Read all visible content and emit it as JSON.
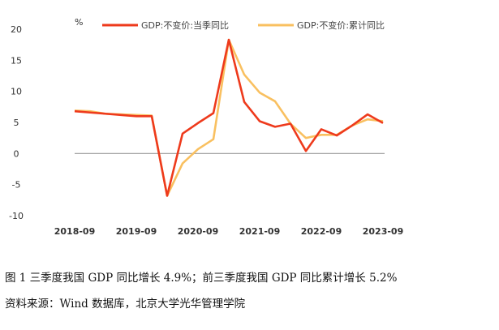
{
  "chart_data": {
    "type": "line",
    "unit_label": "%",
    "x": [
      "2018-09",
      "2018-12",
      "2019-03",
      "2019-06",
      "2019-09",
      "2019-12",
      "2020-03",
      "2020-06",
      "2020-09",
      "2020-12",
      "2021-03",
      "2021-06",
      "2021-09",
      "2021-12",
      "2022-03",
      "2022-06",
      "2022-09",
      "2022-12",
      "2023-03",
      "2023-06",
      "2023-09"
    ],
    "xticks": [
      "2018-09",
      "2019-09",
      "2020-09",
      "2021-09",
      "2022-09",
      "2023-09"
    ],
    "ylim": [
      -10,
      20
    ],
    "yticks": [
      20,
      15,
      10,
      5,
      0,
      -5,
      -10
    ],
    "legend_position": "top",
    "series": [
      {
        "name": "GDP:不变价:当季同比",
        "color": "#ee3a1c",
        "values": [
          6.8,
          6.6,
          6.4,
          6.2,
          6.0,
          6.0,
          -6.8,
          3.2,
          4.9,
          6.5,
          18.3,
          8.3,
          5.2,
          4.3,
          4.8,
          0.4,
          3.9,
          2.9,
          4.5,
          6.3,
          4.9
        ]
      },
      {
        "name": "GDP:不变价:累计同比",
        "color": "#f9c060",
        "values": [
          6.9,
          6.8,
          6.4,
          6.3,
          6.2,
          6.1,
          -6.8,
          -1.6,
          0.7,
          2.3,
          18.3,
          12.7,
          9.8,
          8.4,
          4.8,
          2.5,
          3.0,
          3.0,
          4.5,
          5.5,
          5.2
        ]
      }
    ]
  },
  "caption": "图 1 三季度我国 GDP 同比增长 4.9%；前三季度我国 GDP 同比累计增长 5.2%",
  "source": "资料来源：Wind 数据库，北京大学光华管理学院"
}
